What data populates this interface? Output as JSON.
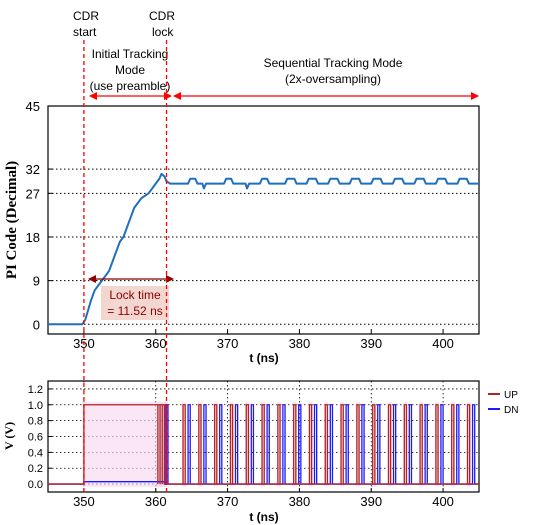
{
  "annotations": {
    "cdr_start": [
      "CDR",
      "start"
    ],
    "cdr_lock": [
      "CDR",
      "lock"
    ],
    "initial_mode": [
      "Initial Tracking",
      "Mode",
      "(use preamble)"
    ],
    "sequential_mode": [
      "Sequential Tracking Mode",
      "(2x-oversampling)"
    ],
    "lock_time": [
      "Lock time",
      "= 11.52 ns"
    ]
  },
  "colors": {
    "pi_code": "#1f6fbf",
    "up": "#b22222",
    "dn": "#1a1aff",
    "marker": "#ff0000",
    "lock_box": "#f2d7d0",
    "lock_text": "#8b0000"
  },
  "chart_data": [
    {
      "type": "line",
      "xlabel": "t (ns)",
      "ylabel": "PI Code (Decimal)",
      "xlim": [
        345,
        405
      ],
      "ylim": [
        -2,
        45
      ],
      "xticks": [
        350,
        360,
        370,
        380,
        390,
        400
      ],
      "yticks": [
        0,
        9,
        18,
        27,
        32,
        45
      ],
      "grid": true,
      "markers_x": [
        350,
        361.5
      ],
      "series": [
        {
          "x": [
            345,
            349.8,
            350.2,
            350.6,
            351.0,
            351.5,
            352.0,
            352.5,
            353.0,
            353.5,
            354.0,
            354.5,
            355.0,
            355.5,
            356.0,
            356.5,
            357.0,
            357.5,
            358.0,
            358.5,
            359.0,
            359.5,
            360.0,
            360.5,
            360.8,
            361.2,
            361.5,
            362.0,
            364.5,
            364.8,
            365.5,
            365.8,
            366.5,
            366.7,
            367.0,
            369.5,
            369.8,
            370.5,
            370.8,
            372.5,
            372.7,
            373.0,
            374.5,
            374.8,
            375.5,
            375.8,
            378.0,
            378.3,
            379.3,
            379.6,
            381.0,
            381.3,
            382.3,
            382.6,
            384.0,
            384.3,
            385.3,
            385.6,
            387.0,
            387.3,
            388.3,
            388.6,
            390.0,
            390.3,
            391.3,
            391.6,
            393.0,
            393.3,
            394.3,
            394.6,
            396.0,
            396.3,
            397.3,
            397.6,
            399.0,
            399.3,
            400.3,
            400.6,
            402.0,
            402.3,
            403.3,
            403.6,
            405
          ],
          "y": [
            0,
            0,
            1,
            3,
            5,
            7,
            8,
            9,
            10,
            11,
            13,
            15,
            17,
            18,
            20,
            22,
            24,
            25,
            26,
            26.5,
            27,
            28,
            29,
            30,
            31,
            30.5,
            29.5,
            29,
            29,
            30,
            30,
            29,
            29,
            28,
            29,
            29,
            30,
            30,
            29,
            29,
            28,
            29,
            29,
            30,
            30,
            29,
            29,
            30,
            30,
            29,
            29,
            30,
            30,
            29,
            29,
            30,
            30,
            29,
            29,
            30,
            30,
            29,
            29,
            30,
            30,
            29,
            29,
            30,
            30,
            29,
            29,
            30,
            30,
            29,
            29,
            30,
            30,
            29,
            29,
            30,
            30,
            29,
            29
          ]
        }
      ]
    },
    {
      "type": "line",
      "xlabel": "t (ns)",
      "ylabel": "V (V)",
      "xlim": [
        345,
        405
      ],
      "ylim": [
        -0.1,
        1.3
      ],
      "xticks": [
        350,
        360,
        370,
        380,
        390,
        400
      ],
      "yticks": [
        0.0,
        0.2,
        0.4,
        0.6,
        0.8,
        1.0,
        1.2
      ],
      "ytick_labels": [
        "0.0",
        "0.2",
        "0.4",
        "0.6",
        "0.8",
        "1.0",
        "1.2"
      ],
      "grid": true,
      "legend": "right",
      "series": [
        {
          "name": "UP",
          "pulse_starts": [
            350.0,
            360.3,
            360.6,
            360.9,
            361.2,
            363.8,
            366.0,
            368.2,
            370.4,
            372.6,
            374.8,
            377.0,
            379.2,
            381.4,
            383.6,
            385.8,
            388.0,
            390.2,
            392.4,
            394.6,
            396.8,
            399.0,
            401.2,
            403.4
          ],
          "pulse_width": 0.3,
          "first_pulse_end": 360.3,
          "level": 1.0
        },
        {
          "name": "DN",
          "pulse_starts": [
            361.4,
            364.5,
            366.7,
            368.9,
            371.1,
            373.3,
            375.5,
            377.7,
            379.9,
            382.1,
            384.3,
            386.5,
            388.7,
            390.9,
            393.1,
            395.3,
            397.5,
            399.7,
            401.9,
            404.1
          ],
          "pulse_width": 0.3,
          "baseline_level": 0.03,
          "level": 1.0
        }
      ]
    }
  ]
}
